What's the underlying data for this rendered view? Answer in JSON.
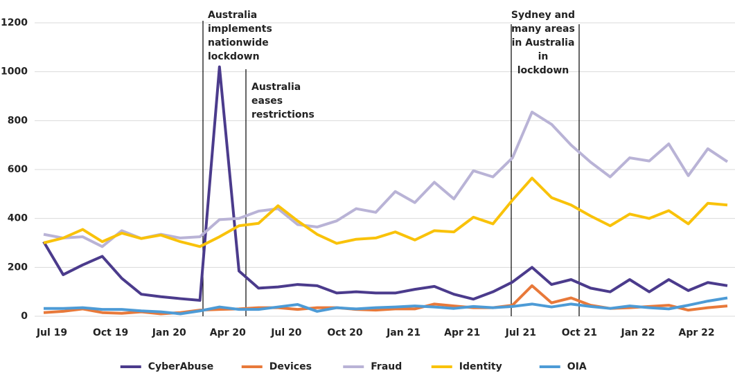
{
  "chart_data": {
    "type": "line",
    "categories": [
      "Jul 19",
      null,
      null,
      "Oct 19",
      null,
      null,
      "Jan 20",
      null,
      null,
      "Apr 20",
      null,
      null,
      "Jul 20",
      null,
      null,
      "Oct 20",
      null,
      null,
      "Jan 21",
      null,
      null,
      "Apr 21",
      null,
      null,
      "Jul 21",
      null,
      null,
      "Oct 21",
      null,
      null,
      "Jan 22",
      null,
      null,
      "Apr 22",
      null,
      null
    ],
    "series": [
      {
        "name": "CyberAbuse",
        "color": "#4b3b8c",
        "values": [
          305,
          170,
          210,
          245,
          155,
          90,
          80,
          72,
          65,
          1020,
          185,
          115,
          120,
          130,
          125,
          95,
          100,
          95,
          95,
          110,
          122,
          90,
          70,
          100,
          140,
          200,
          130,
          150,
          115,
          100,
          150,
          100,
          150,
          105,
          138,
          125
        ]
      },
      {
        "name": "Devices",
        "color": "#e8793a",
        "values": [
          15,
          20,
          30,
          15,
          12,
          18,
          10,
          15,
          25,
          28,
          30,
          35,
          35,
          28,
          35,
          35,
          28,
          25,
          30,
          30,
          50,
          42,
          35,
          35,
          45,
          125,
          55,
          75,
          45,
          32,
          35,
          40,
          45,
          25,
          35,
          42
        ]
      },
      {
        "name": "Fraud",
        "color": "#b9b3d6",
        "values": [
          335,
          320,
          325,
          285,
          350,
          318,
          335,
          320,
          325,
          395,
          400,
          430,
          440,
          375,
          365,
          390,
          440,
          425,
          510,
          465,
          548,
          480,
          595,
          570,
          648,
          835,
          785,
          700,
          630,
          570,
          648,
          635,
          705,
          575,
          685,
          632
        ]
      },
      {
        "name": "Identity",
        "color": "#f9c20a",
        "values": [
          300,
          320,
          355,
          305,
          340,
          318,
          332,
          305,
          285,
          325,
          370,
          380,
          452,
          390,
          335,
          298,
          315,
          320,
          345,
          312,
          350,
          345,
          405,
          378,
          475,
          565,
          485,
          455,
          410,
          370,
          418,
          400,
          432,
          378,
          462,
          455
        ]
      },
      {
        "name": "OIA",
        "color": "#4d9bd6",
        "values": [
          32,
          32,
          35,
          28,
          28,
          22,
          18,
          10,
          22,
          38,
          28,
          28,
          38,
          48,
          20,
          35,
          30,
          35,
          38,
          42,
          38,
          32,
          40,
          35,
          40,
          50,
          38,
          50,
          40,
          32,
          42,
          35,
          30,
          45,
          62,
          75
        ]
      }
    ],
    "ylim": [
      0,
      1200
    ],
    "yticks": [
      0,
      200,
      400,
      600,
      800,
      1000,
      1200
    ],
    "grid": true,
    "legend": "bottom",
    "annotations": [
      {
        "lines": [
          "Australia",
          "implements",
          "nationwide",
          "lockdown"
        ]
      },
      {
        "lines": [
          "Australia",
          "eases",
          "restrictions"
        ]
      },
      {
        "lines": [
          "Sydney and",
          "many areas",
          "in Australia",
          "in",
          "lockdown"
        ]
      }
    ]
  }
}
